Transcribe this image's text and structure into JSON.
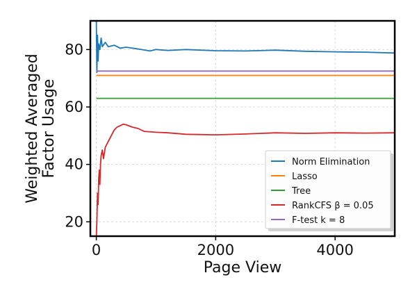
{
  "chart_data": {
    "type": "line",
    "xlabel": "Page View",
    "ylabel_lines": [
      "Weighted Averaged",
      "Factor Usage"
    ],
    "xlim": [
      -100,
      5000
    ],
    "ylim": [
      15,
      90
    ],
    "xticks": [
      0,
      2000,
      4000
    ],
    "yticks": [
      20,
      40,
      60,
      80
    ],
    "grid": true,
    "legend_position": "lower-right",
    "series": [
      {
        "name": "Norm Elimination",
        "color": "#1f77b4",
        "x": [
          0,
          10,
          20,
          30,
          40,
          60,
          80,
          100,
          150,
          200,
          300,
          400,
          500,
          700,
          900,
          1000,
          1200,
          1500,
          2000,
          2500,
          3000,
          3500,
          4000,
          4500,
          5000
        ],
        "y": [
          90,
          72,
          85,
          76,
          82,
          80,
          84,
          81,
          82.5,
          81,
          81.5,
          80.5,
          80.8,
          80.2,
          79.5,
          80,
          79.7,
          80,
          79.6,
          79.5,
          79.8,
          79.4,
          79.2,
          79.1,
          78.8
        ]
      },
      {
        "name": "Lasso",
        "color": "#ff7f0e",
        "x": [
          0,
          5000
        ],
        "y": [
          71,
          71
        ]
      },
      {
        "name": "Tree",
        "color": "#2ca02c",
        "x": [
          0,
          5000
        ],
        "y": [
          63,
          63
        ]
      },
      {
        "name": "RankCFS β = 0.05",
        "color": "#d62728",
        "x": [
          0,
          10,
          20,
          30,
          40,
          50,
          60,
          70,
          80,
          100,
          120,
          150,
          200,
          250,
          300,
          350,
          400,
          450,
          500,
          600,
          700,
          800,
          1000,
          1200,
          1500,
          2000,
          2500,
          3000,
          3500,
          4000,
          4500,
          5000
        ],
        "y": [
          15,
          20,
          30,
          26,
          35,
          38,
          33,
          40,
          43,
          45,
          42,
          46,
          48,
          50,
          52,
          53,
          53.5,
          54,
          53.8,
          53,
          52.5,
          51.5,
          51.2,
          51,
          50.5,
          50.3,
          50.6,
          51,
          50.8,
          51,
          50.9,
          51
        ]
      },
      {
        "name": "F-test k = 8",
        "color": "#9467bd",
        "x": [
          0,
          5000
        ],
        "y": [
          72.5,
          72.5
        ]
      }
    ]
  }
}
